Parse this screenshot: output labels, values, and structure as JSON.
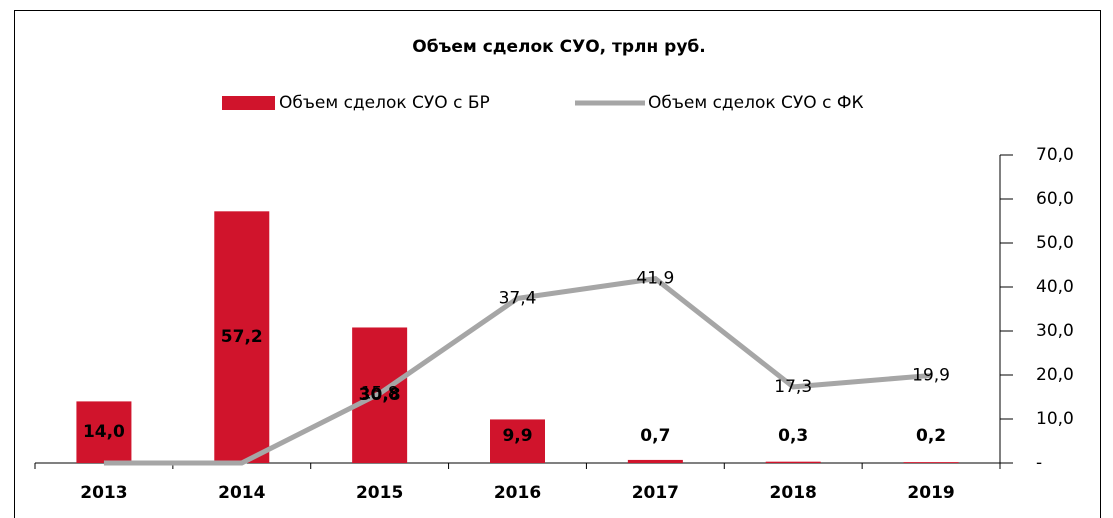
{
  "chart_data": {
    "type": "bar_line",
    "title": "Объем сделок СУО, трлн руб.",
    "categories": [
      "2013",
      "2014",
      "2015",
      "2016",
      "2017",
      "2018",
      "2019"
    ],
    "series": [
      {
        "name": "Объем сделок СУО с БР",
        "type": "bar",
        "color": "#d0142c",
        "values": [
          14.0,
          57.2,
          30.8,
          9.9,
          0.7,
          0.3,
          0.2
        ],
        "value_labels": [
          "14,0",
          "57,2",
          "30,8",
          "9,9",
          "0,7",
          "0,3",
          "0,2"
        ]
      },
      {
        "name": "Объем сделок СУО с ФК",
        "type": "line",
        "color": "#a6a6a6",
        "values": [
          0,
          0,
          15.8,
          37.4,
          41.9,
          17.3,
          19.9
        ],
        "value_labels": [
          null,
          null,
          "15,8",
          "37,4",
          "41,9",
          "17,3",
          "19,9"
        ]
      }
    ],
    "ylim": [
      0,
      70
    ],
    "yticks": [
      {
        "value": 0,
        "label": "-"
      },
      {
        "value": 10,
        "label": "10,0"
      },
      {
        "value": 20,
        "label": "20,0"
      },
      {
        "value": 30,
        "label": "30,0"
      },
      {
        "value": 40,
        "label": "40,0"
      },
      {
        "value": 50,
        "label": "50,0"
      },
      {
        "value": 60,
        "label": "60,0"
      },
      {
        "value": 70,
        "label": "70,0"
      }
    ],
    "legend": "top"
  }
}
